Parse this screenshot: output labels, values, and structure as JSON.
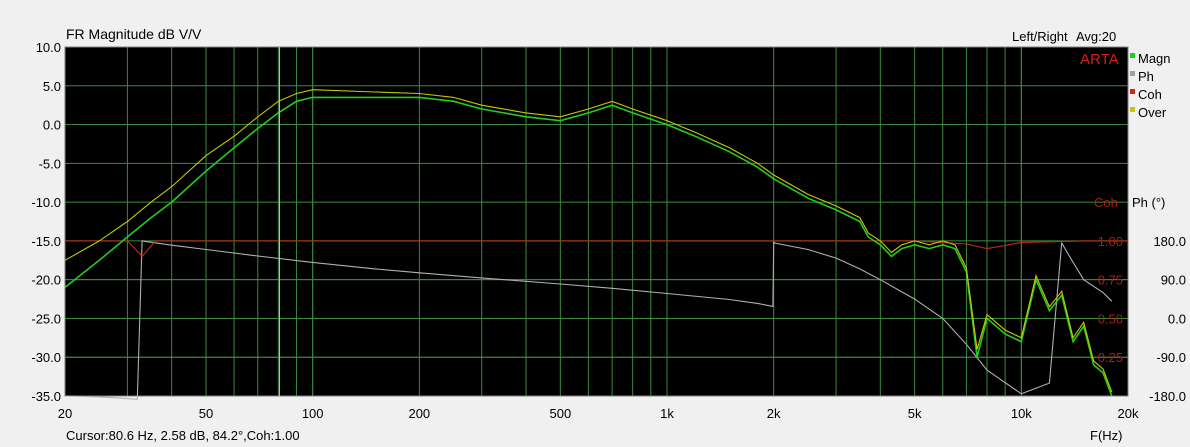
{
  "header": {
    "title": "FR Magnitude dB V/V",
    "channel": "Left/Right",
    "avg": "Avg:20",
    "brand": "ARTA"
  },
  "legend": [
    {
      "label": "Magn",
      "color": "#22cc22"
    },
    {
      "label": "Ph",
      "color": "#a0a0a0"
    },
    {
      "label": "Coh",
      "color": "#c03010"
    },
    {
      "label": "Over",
      "color": "#c8c800"
    }
  ],
  "footer": {
    "cursor": "Cursor:80.6 Hz, 2.58 dB, 84.2°,Coh:1.00",
    "xunit": "F(Hz)"
  },
  "right_axes": {
    "coh_title": "Coh",
    "ph_title": "Ph (°)",
    "coh_ticks": [
      "1.00",
      "0.75",
      "0.50",
      "0.25"
    ],
    "ph_ticks": [
      "180.0",
      "90.0",
      "0.0",
      "-90.0",
      "-180.0"
    ]
  },
  "chart_data": {
    "type": "line",
    "title": "FR Magnitude dB V/V",
    "xlabel": "F(Hz)",
    "ylabel": "",
    "xscale": "log",
    "xlim": [
      20,
      20000
    ],
    "ylim": [
      -35,
      10
    ],
    "x_ticks": [
      "20",
      "50",
      "100",
      "200",
      "500",
      "1k",
      "2k",
      "5k",
      "10k",
      "20k"
    ],
    "y_ticks": [
      "10.0",
      "5.0",
      "0.0",
      "-5.0",
      "-10.0",
      "-15.0",
      "-20.0",
      "-25.0",
      "-30.0",
      "-35.0"
    ],
    "cursor_hz": 80.6,
    "grid": true,
    "legend_position": "right",
    "series": [
      {
        "name": "Magn",
        "color": "#22cc22",
        "x": [
          20,
          25,
          30,
          35,
          40,
          50,
          60,
          70,
          80,
          90,
          100,
          150,
          200,
          250,
          300,
          400,
          500,
          600,
          700,
          800,
          1000,
          1200,
          1500,
          1800,
          2000,
          2500,
          3000,
          3500,
          3700,
          4000,
          4300,
          4600,
          5000,
          5500,
          6000,
          6500,
          7000,
          7500,
          8000,
          9000,
          10000,
          11000,
          12000,
          13000,
          14000,
          15000,
          16000,
          17000,
          18000
        ],
        "y": [
          -21,
          -17.5,
          -14.5,
          -12,
          -10,
          -6,
          -3,
          -0.5,
          1.5,
          3,
          3.5,
          3.5,
          3.5,
          3,
          2,
          1,
          0.5,
          1.5,
          2.5,
          1.5,
          0,
          -1.5,
          -3.5,
          -5.5,
          -7,
          -9.5,
          -11,
          -12.5,
          -14.5,
          -15.5,
          -17,
          -16,
          -15.5,
          -16,
          -15.5,
          -16,
          -19,
          -30,
          -25,
          -27,
          -28,
          -20,
          -24,
          -22,
          -28,
          -26,
          -31,
          -32,
          -35
        ]
      },
      {
        "name": "Over",
        "color": "#c8c800",
        "x": [
          20,
          25,
          30,
          35,
          40,
          50,
          60,
          70,
          80,
          90,
          100,
          150,
          200,
          250,
          300,
          400,
          500,
          600,
          700,
          800,
          1000,
          1200,
          1500,
          1800,
          2000,
          2500,
          3000,
          3500,
          3700,
          4000,
          4300,
          4600,
          5000,
          5500,
          6000,
          6500,
          7000,
          7500,
          8000,
          9000,
          10000,
          11000,
          12000,
          13000,
          14000,
          15000,
          16000,
          17000,
          18000
        ],
        "y": [
          -17.5,
          -15,
          -12.5,
          -10,
          -8,
          -4,
          -1.5,
          1,
          3,
          4,
          4.5,
          4.2,
          4,
          3.5,
          2.5,
          1.5,
          1,
          2,
          3,
          2,
          0.5,
          -1,
          -3,
          -5,
          -6.5,
          -9,
          -10.5,
          -12,
          -14,
          -15,
          -16.5,
          -15.5,
          -15,
          -15.5,
          -15,
          -15.5,
          -18.5,
          -29,
          -24.5,
          -26.5,
          -27.5,
          -19.5,
          -23.5,
          -21.5,
          -27.5,
          -25.5,
          -30.5,
          -31.5,
          -34.5
        ]
      },
      {
        "name": "Ph",
        "color": "#b0b0b0",
        "x": [
          20,
          25,
          30,
          32,
          33,
          40,
          50,
          70,
          100,
          150,
          200,
          300,
          500,
          700,
          1000,
          1500,
          1800,
          1990,
          2000,
          2010,
          2500,
          3000,
          3500,
          4000,
          5000,
          6000,
          7000,
          8000,
          10000,
          12000,
          13000,
          14000,
          15000,
          17000,
          18000
        ],
        "y": [
          -180,
          -182,
          -186,
          -188,
          180,
          170,
          160,
          145,
          130,
          115,
          106,
          94,
          80,
          70,
          58,
          44,
          35,
          28,
          180,
          175,
          160,
          140,
          115,
          90,
          45,
          0,
          -60,
          -120,
          -175,
          -150,
          175,
          130,
          90,
          60,
          40
        ]
      },
      {
        "name": "Coh",
        "color": "#c03010",
        "x": [
          20,
          25,
          30,
          33,
          36,
          40,
          100,
          1000,
          2000,
          5000,
          7000,
          8000,
          9000,
          10000,
          15000,
          20000
        ],
        "y": [
          1.0,
          1.0,
          1.0,
          0.9,
          1.0,
          1.0,
          1.0,
          1.0,
          1.0,
          1.0,
          0.98,
          0.95,
          0.97,
          0.99,
          1.0,
          1.0
        ]
      }
    ]
  }
}
